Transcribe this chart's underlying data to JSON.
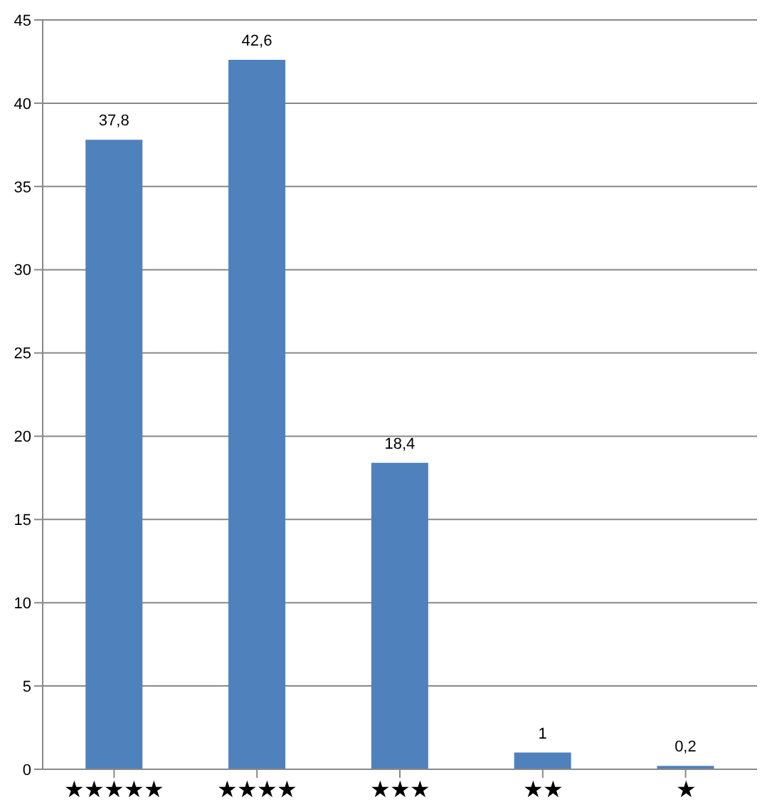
{
  "chart_data": {
    "type": "bar",
    "categories": [
      "★★★★★",
      "★★★★",
      "★★★",
      "★★",
      "★"
    ],
    "values": [
      37.8,
      42.6,
      18.4,
      1,
      0.2
    ],
    "value_labels": [
      "37,8",
      "42,6",
      "18,4",
      "1",
      "0,2"
    ],
    "color": "#4f81bd",
    "ylim": [
      0,
      45
    ],
    "yticks": [
      0,
      5,
      10,
      15,
      20,
      25,
      30,
      35,
      40,
      45
    ],
    "grid": "y",
    "legend": false
  }
}
